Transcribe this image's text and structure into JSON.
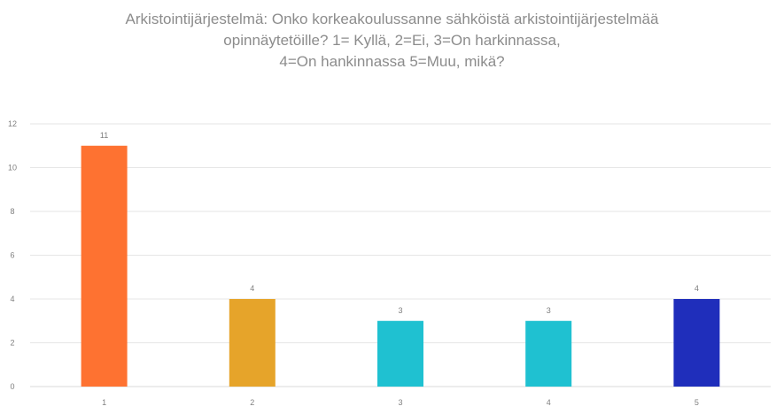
{
  "chart_data": {
    "type": "bar",
    "title_lines": [
      "Arkistointijärjestelmä: Onko korkeakoulussanne sähköistä arkistointijärjestelmää",
      "opinnäytetöille? 1= Kyllä, 2=Ei, 3=On harkinnassa,",
      "4=On hankinnassa 5=Muu, mikä?"
    ],
    "categories": [
      "1",
      "2",
      "3",
      "4",
      "5"
    ],
    "values": [
      11,
      4,
      3,
      3,
      4
    ],
    "colors": [
      "#fe7231",
      "#e6a42a",
      "#1fc1d1",
      "#1fc1d1",
      "#1f2ebb"
    ],
    "y_ticks": [
      0,
      2,
      4,
      6,
      8,
      10,
      12
    ],
    "ylim": [
      0,
      12
    ],
    "grid": true,
    "legend": "none",
    "show_data_labels": true
  }
}
